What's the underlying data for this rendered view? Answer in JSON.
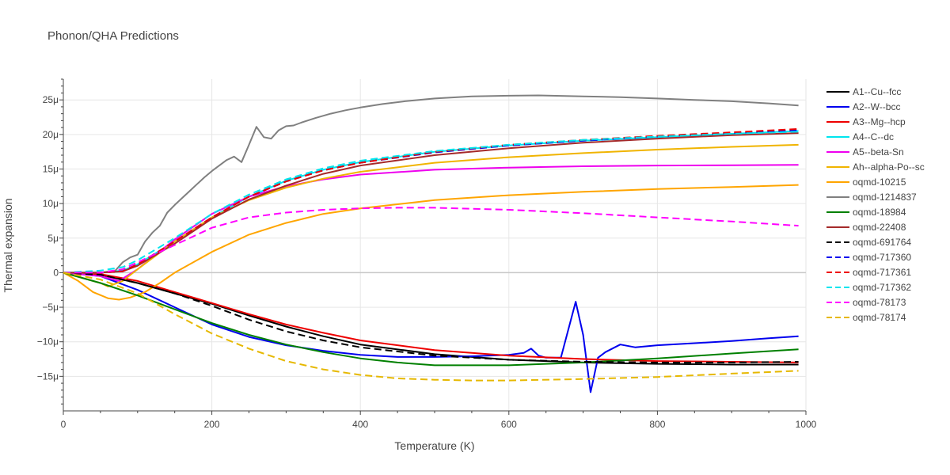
{
  "chart_data": {
    "type": "line",
    "title": "Phonon/QHA Predictions",
    "xlabel": "Temperature (K)",
    "ylabel": "Thermal expansion",
    "xlim": [
      0,
      1000
    ],
    "ylim": [
      -20,
      28
    ],
    "x_ticks": [
      0,
      200,
      400,
      600,
      800,
      1000
    ],
    "x_tick_labels": [
      "0",
      "200",
      "400",
      "600",
      "800",
      "1000"
    ],
    "y_ticks": [
      -15,
      -10,
      -5,
      0,
      5,
      10,
      15,
      20,
      25
    ],
    "y_tick_labels": [
      "−15μ",
      "−10μ",
      "−5μ",
      "0",
      "5μ",
      "10μ",
      "15μ",
      "20μ",
      "25μ"
    ],
    "grid": true,
    "legend_position": "right",
    "series": [
      {
        "name": "A1--Cu--fcc",
        "color": "#000000",
        "dash": "solid",
        "x": [
          0,
          50,
          100,
          150,
          200,
          250,
          300,
          350,
          400,
          500,
          600,
          700,
          800,
          900,
          990
        ],
        "y": [
          0,
          -0.3,
          -1.5,
          -3.0,
          -4.5,
          -6.2,
          -7.8,
          -9.2,
          -10.4,
          -11.8,
          -12.6,
          -13.0,
          -13.2,
          -13.3,
          -13.3
        ]
      },
      {
        "name": "A2--W--bcc",
        "color": "#0000ee",
        "dash": "solid",
        "x": [
          0,
          50,
          100,
          150,
          200,
          250,
          300,
          350,
          400,
          450,
          500,
          550,
          600,
          620,
          630,
          640,
          650,
          670,
          690,
          700,
          710,
          720,
          730,
          750,
          770,
          800,
          850,
          900,
          950,
          990
        ],
        "y": [
          0,
          -0.5,
          -2.5,
          -5.0,
          -7.5,
          -9.3,
          -10.5,
          -11.3,
          -11.9,
          -12.2,
          -12.2,
          -12.1,
          -11.9,
          -11.6,
          -11.0,
          -12.0,
          -12.3,
          -12.3,
          -4.2,
          -9.0,
          -17.3,
          -12.3,
          -11.5,
          -10.4,
          -10.8,
          -10.5,
          -10.2,
          -9.9,
          -9.5,
          -9.2
        ]
      },
      {
        "name": "A3--Mg--hcp",
        "color": "#ee0000",
        "dash": "solid",
        "x": [
          0,
          50,
          100,
          150,
          200,
          250,
          300,
          350,
          400,
          500,
          600,
          700,
          800,
          900,
          990
        ],
        "y": [
          0,
          -0.2,
          -1.2,
          -2.8,
          -4.4,
          -6.0,
          -7.5,
          -8.7,
          -9.8,
          -11.2,
          -12.0,
          -12.5,
          -12.8,
          -12.9,
          -13.0
        ]
      },
      {
        "name": "A4--C--dc",
        "color": "#00e5ee",
        "dash": "solid",
        "x": [
          0,
          50,
          80,
          100,
          150,
          200,
          250,
          300,
          350,
          400,
          500,
          600,
          700,
          800,
          900,
          990
        ],
        "y": [
          0,
          0,
          0.3,
          1.2,
          4.5,
          8.0,
          11.0,
          13.3,
          14.9,
          16.0,
          17.5,
          18.4,
          19.1,
          19.6,
          20.1,
          20.5
        ]
      },
      {
        "name": "A5--beta-Sn",
        "color": "#ee00ee",
        "dash": "solid",
        "x": [
          0,
          50,
          75,
          100,
          150,
          200,
          250,
          300,
          350,
          400,
          500,
          600,
          700,
          800,
          900,
          990
        ],
        "y": [
          0,
          -0.5,
          -1.2,
          0.5,
          4.8,
          8.5,
          11.0,
          12.5,
          13.5,
          14.2,
          14.9,
          15.2,
          15.4,
          15.5,
          15.55,
          15.6
        ]
      },
      {
        "name": "Ah--alpha-Po--sc",
        "color": "#f0b400",
        "dash": "solid",
        "x": [
          0,
          50,
          60,
          80,
          100,
          150,
          200,
          250,
          300,
          350,
          400,
          500,
          600,
          700,
          800,
          900,
          990
        ],
        "y": [
          0,
          -1.5,
          -2.0,
          -1.2,
          0.5,
          4.5,
          8.0,
          10.5,
          12.3,
          13.6,
          14.6,
          15.9,
          16.7,
          17.3,
          17.8,
          18.2,
          18.5
        ]
      },
      {
        "name": "oqmd-10215",
        "color": "#ffa500",
        "dash": "solid",
        "x": [
          0,
          20,
          40,
          60,
          75,
          90,
          110,
          130,
          150,
          200,
          250,
          300,
          350,
          400,
          500,
          600,
          700,
          800,
          900,
          990
        ],
        "y": [
          0,
          -1.2,
          -2.8,
          -3.7,
          -3.9,
          -3.6,
          -2.8,
          -1.5,
          0,
          3.0,
          5.5,
          7.2,
          8.5,
          9.3,
          10.5,
          11.2,
          11.7,
          12.1,
          12.4,
          12.7
        ]
      },
      {
        "name": "oqmd-1214837",
        "color": "#808080",
        "dash": "solid",
        "x": [
          0,
          50,
          70,
          80,
          90,
          100,
          110,
          120,
          130,
          140,
          150,
          160,
          170,
          180,
          190,
          200,
          210,
          220,
          230,
          240,
          250,
          260,
          270,
          280,
          290,
          300,
          310,
          320,
          340,
          360,
          380,
          400,
          430,
          460,
          500,
          550,
          600,
          640,
          700,
          750,
          800,
          850,
          900,
          950,
          990
        ],
        "y": [
          0,
          0,
          0.3,
          1.5,
          2.2,
          2.6,
          4.5,
          5.8,
          6.8,
          8.7,
          9.8,
          10.8,
          11.8,
          12.8,
          13.8,
          14.7,
          15.5,
          16.3,
          16.8,
          16.0,
          18.5,
          21.1,
          19.6,
          19.4,
          20.6,
          21.2,
          21.3,
          21.7,
          22.4,
          23.0,
          23.5,
          23.9,
          24.4,
          24.8,
          25.2,
          25.5,
          25.6,
          25.65,
          25.5,
          25.4,
          25.2,
          25.0,
          24.8,
          24.5,
          24.2
        ]
      },
      {
        "name": "oqmd-18984",
        "color": "#008000",
        "dash": "solid",
        "x": [
          0,
          50,
          100,
          150,
          200,
          250,
          300,
          350,
          400,
          450,
          500,
          550,
          600,
          700,
          800,
          900,
          990
        ],
        "y": [
          0,
          -1.5,
          -3.3,
          -5.3,
          -7.3,
          -9.0,
          -10.4,
          -11.5,
          -12.4,
          -13.0,
          -13.4,
          -13.4,
          -13.4,
          -13.0,
          -12.4,
          -11.7,
          -11.1
        ]
      },
      {
        "name": "oqmd-22408",
        "color": "#a52a2a",
        "dash": "solid",
        "x": [
          0,
          50,
          80,
          100,
          150,
          200,
          250,
          300,
          350,
          400,
          500,
          600,
          700,
          800,
          900,
          990
        ],
        "y": [
          0,
          0,
          0.2,
          1.0,
          4.2,
          7.8,
          10.6,
          12.6,
          14.3,
          15.5,
          17.0,
          18.0,
          18.8,
          19.4,
          19.9,
          20.2
        ]
      },
      {
        "name": "oqmd-691764",
        "color": "#000000",
        "dash": "dash",
        "x": [
          0,
          50,
          100,
          150,
          200,
          250,
          300,
          350,
          400,
          500,
          600,
          700,
          800,
          900,
          990
        ],
        "y": [
          0,
          -0.3,
          -1.5,
          -3.0,
          -4.8,
          -6.8,
          -8.5,
          -9.8,
          -10.8,
          -12.0,
          -12.6,
          -12.9,
          -13.0,
          -13.0,
          -12.9
        ]
      },
      {
        "name": "oqmd-717360",
        "color": "#0000ee",
        "dash": "dash",
        "x": [
          0,
          50,
          80,
          100,
          150,
          200,
          250,
          300,
          350,
          400,
          500,
          600,
          700,
          800,
          900,
          990
        ],
        "y": [
          0,
          0,
          0.2,
          1.2,
          4.5,
          8.0,
          11.0,
          13.2,
          14.8,
          15.9,
          17.4,
          18.4,
          19.1,
          19.7,
          20.2,
          20.6
        ]
      },
      {
        "name": "oqmd-717361",
        "color": "#ee0000",
        "dash": "dash",
        "x": [
          0,
          50,
          80,
          100,
          150,
          200,
          250,
          300,
          350,
          400,
          500,
          600,
          700,
          800,
          900,
          990
        ],
        "y": [
          0,
          0,
          0.2,
          1.2,
          4.5,
          8.0,
          11.0,
          13.2,
          14.8,
          15.9,
          17.5,
          18.5,
          19.2,
          19.8,
          20.3,
          20.8
        ]
      },
      {
        "name": "oqmd-717362",
        "color": "#00e5ee",
        "dash": "dash",
        "x": [
          0,
          50,
          80,
          100,
          150,
          200,
          250,
          300,
          350,
          400,
          500,
          600,
          700,
          800,
          900,
          990
        ],
        "y": [
          0,
          0.3,
          0.8,
          1.8,
          5.0,
          8.5,
          11.3,
          13.5,
          15.1,
          16.2,
          17.6,
          18.5,
          19.2,
          19.7,
          20.1,
          20.4
        ]
      },
      {
        "name": "oqmd-78173",
        "color": "#ff00ff",
        "dash": "dash",
        "x": [
          0,
          50,
          80,
          100,
          150,
          200,
          250,
          300,
          350,
          400,
          450,
          500,
          600,
          700,
          800,
          900,
          990
        ],
        "y": [
          0,
          0,
          0.5,
          1.5,
          4.0,
          6.5,
          8.0,
          8.7,
          9.1,
          9.3,
          9.4,
          9.4,
          9.1,
          8.6,
          8.0,
          7.4,
          6.8
        ]
      },
      {
        "name": "oqmd-78174",
        "color": "#e6b800",
        "dash": "dash",
        "x": [
          0,
          50,
          100,
          150,
          200,
          250,
          300,
          350,
          400,
          450,
          500,
          550,
          600,
          700,
          800,
          900,
          990
        ],
        "y": [
          0,
          -1.0,
          -3.0,
          -6.0,
          -8.8,
          -11.0,
          -12.8,
          -14.0,
          -14.8,
          -15.3,
          -15.5,
          -15.6,
          -15.6,
          -15.4,
          -15.1,
          -14.6,
          -14.2
        ]
      }
    ]
  }
}
